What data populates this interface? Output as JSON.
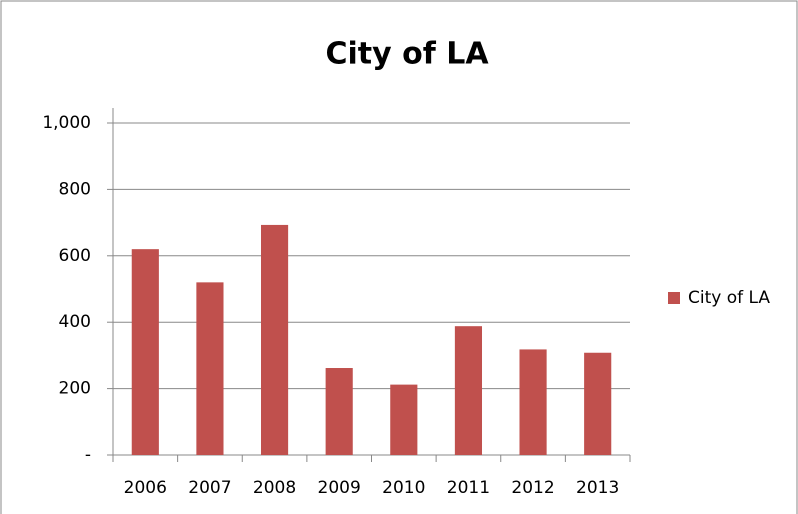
{
  "chart_data": {
    "type": "bar",
    "title": "City of LA",
    "categories": [
      "2006",
      "2007",
      "2008",
      "2009",
      "2010",
      "2011",
      "2012",
      "2013"
    ],
    "series": [
      {
        "name": "City of LA",
        "color": "#c0504d",
        "values": [
          620,
          520,
          693,
          262,
          212,
          388,
          318,
          308
        ]
      }
    ],
    "ylim": [
      0,
      1000
    ],
    "yticks": [
      {
        "value": 0,
        "label": "-"
      },
      200,
      400,
      600,
      800,
      {
        "value": 1000,
        "label": "1,000"
      }
    ],
    "grid": true,
    "legend": "right"
  }
}
